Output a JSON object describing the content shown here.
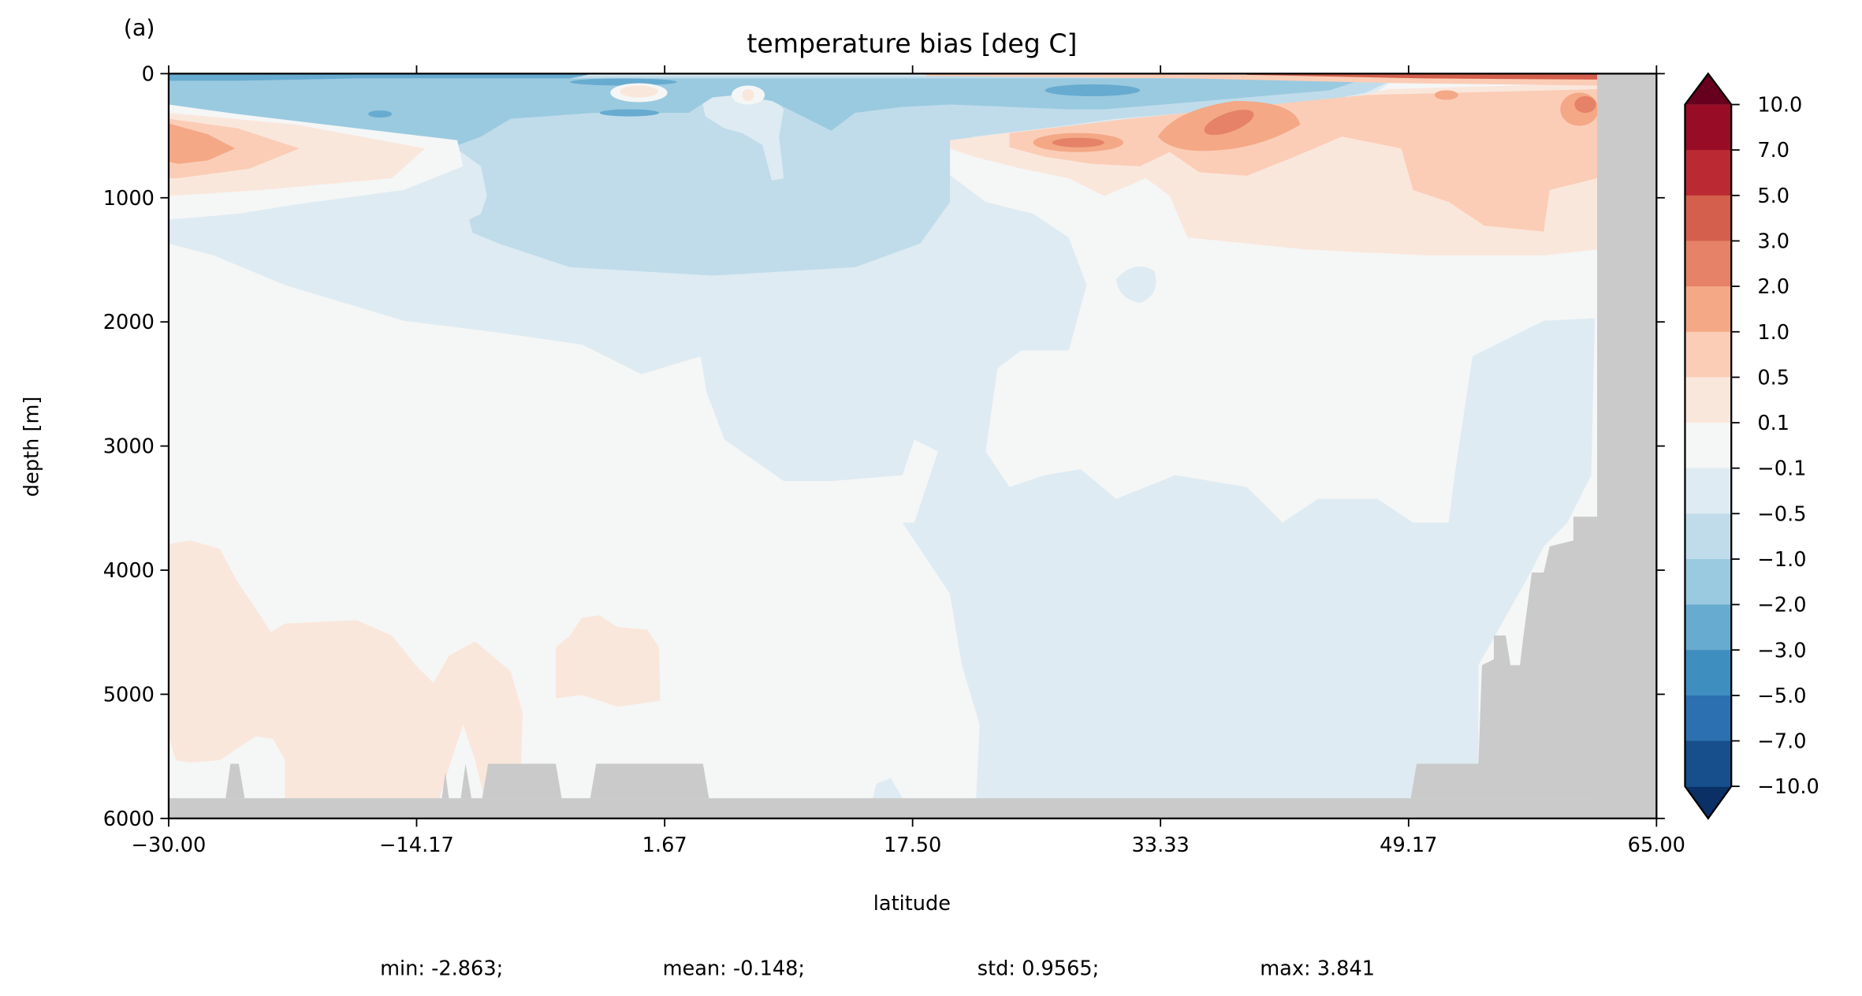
{
  "panel_label": "(a)",
  "chart_data": {
    "type": "heatmap",
    "subtype": "filled-contour",
    "title": "temperature bias [deg C]",
    "xlabel": "latitude",
    "ylabel": "depth [m]",
    "xlim": [
      -30.0,
      65.0
    ],
    "ylim": [
      6000,
      0
    ],
    "xticks": [
      "−30.00",
      "−14.17",
      "1.67",
      "17.50",
      "33.33",
      "49.17",
      "65.00"
    ],
    "xtick_values": [
      -30.0,
      -14.17,
      1.67,
      17.5,
      33.33,
      49.17,
      65.0
    ],
    "yticks": [
      "0",
      "1000",
      "2000",
      "3000",
      "4000",
      "5000",
      "6000"
    ],
    "ytick_values": [
      0,
      1000,
      2000,
      3000,
      4000,
      5000,
      6000
    ],
    "colorbar": {
      "levels": [
        10.0,
        7.0,
        5.0,
        3.0,
        2.0,
        1.0,
        0.5,
        0.1,
        -0.1,
        -0.5,
        -1.0,
        -2.0,
        -3.0,
        -5.0,
        -7.0,
        -10.0
      ],
      "labels": [
        "10.0",
        "7.0",
        "5.0",
        "3.0",
        "2.0",
        "1.0",
        "0.5",
        "0.1",
        "−0.1",
        "−0.5",
        "−1.0",
        "−2.0",
        "−3.0",
        "−5.0",
        "−7.0",
        "−10.0"
      ],
      "colors": [
        "#980c26",
        "#bb2a33",
        "#d35f4c",
        "#e58267",
        "#f4a886",
        "#fbcdb6",
        "#fae7dc",
        "#f5f6f6",
        "#deebf2",
        "#c0dcea",
        "#9acae0",
        "#67abd0",
        "#3f8ec0",
        "#2c70b1",
        "#164f8b"
      ],
      "extend_max_color": "#67001f",
      "extend_min_color": "#0a3066",
      "colormap": "RdBu_r"
    },
    "land_color": "#cacaca",
    "stats": {
      "min": "min: -2.863;",
      "mean": "mean: -0.148;",
      "std": "std: 0.9565;",
      "max": "max: 3.841"
    }
  }
}
